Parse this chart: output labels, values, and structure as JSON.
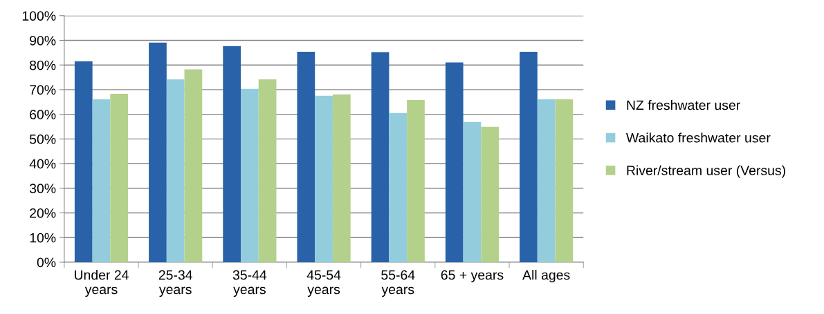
{
  "chart_data": {
    "type": "bar",
    "categories": [
      "Under 24\nyears",
      "25-34\nyears",
      "35-44\nyears",
      "45-54\nyears",
      "55-64\nyears",
      "65 + years",
      "All ages"
    ],
    "series": [
      {
        "name": "NZ freshwater user",
        "color": "#2a62a9",
        "values": [
          81.5,
          89.1,
          87.7,
          85.4,
          85.2,
          81.0,
          85.4
        ]
      },
      {
        "name": "Waikato freshwater user",
        "color": "#93cddd",
        "values": [
          66.1,
          74.2,
          70.3,
          67.5,
          60.5,
          56.9,
          66.1
        ]
      },
      {
        "name": "River/stream user (Versus)",
        "color": "#b3d18a",
        "values": [
          68.3,
          78.2,
          74.2,
          68.1,
          65.8,
          54.9,
          66.1
        ]
      }
    ],
    "ylim": [
      0,
      100
    ],
    "yticks": [
      {
        "value": 0,
        "label": "0%"
      },
      {
        "value": 10,
        "label": "10%"
      },
      {
        "value": 20,
        "label": "20%"
      },
      {
        "value": 30,
        "label": "30%"
      },
      {
        "value": 40,
        "label": "40%"
      },
      {
        "value": 50,
        "label": "50%"
      },
      {
        "value": 60,
        "label": "60%"
      },
      {
        "value": 70,
        "label": "70%"
      },
      {
        "value": 80,
        "label": "80%"
      },
      {
        "value": 90,
        "label": "90%"
      },
      {
        "value": 100,
        "label": "100%"
      }
    ],
    "grid": "y",
    "legend": "right"
  }
}
